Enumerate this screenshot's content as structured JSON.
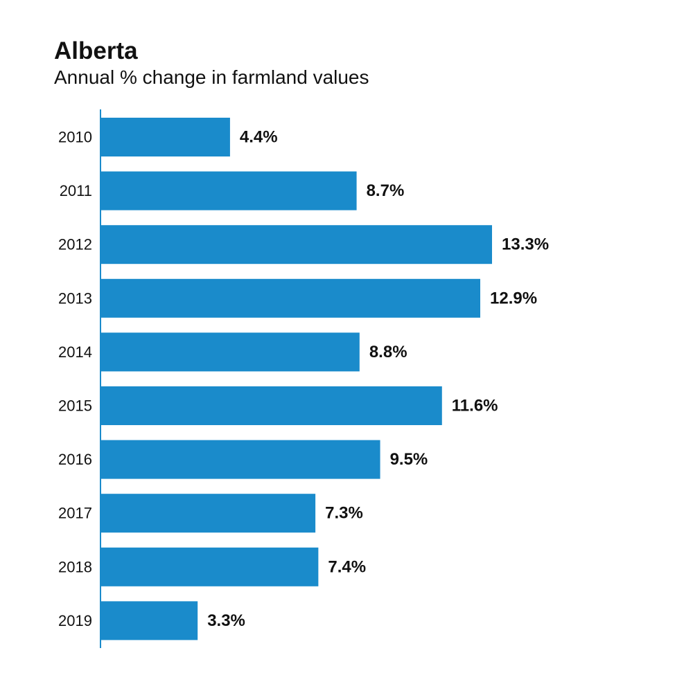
{
  "chart_data": {
    "type": "bar",
    "orientation": "horizontal",
    "title": "Alberta",
    "subtitle": "Annual % change in farmland values",
    "xlabel": "",
    "ylabel": "",
    "categories": [
      "2010",
      "2011",
      "2012",
      "2013",
      "2014",
      "2015",
      "2016",
      "2017",
      "2018",
      "2019"
    ],
    "values": [
      4.4,
      8.7,
      13.3,
      12.9,
      8.8,
      11.6,
      9.5,
      7.3,
      7.4,
      3.3
    ],
    "data_labels": [
      "4.4%",
      "8.7%",
      "13.3%",
      "12.9%",
      "8.8%",
      "11.6%",
      "9.5%",
      "7.3%",
      "7.4%",
      "3.3%"
    ],
    "xlim": [
      0,
      13.3
    ],
    "grid": false,
    "legend": "none",
    "bar_color": "#1a8bcb",
    "axis_color": "#1a8bcb"
  }
}
